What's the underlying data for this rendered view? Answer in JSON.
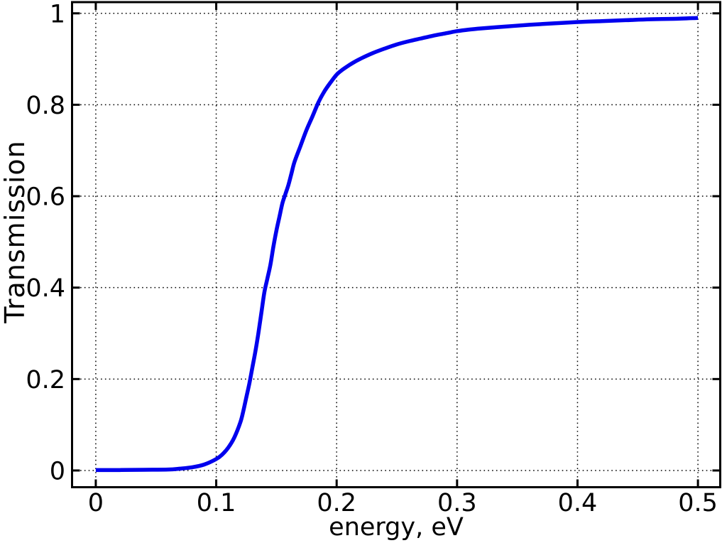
{
  "figure": {
    "background_color": "#ffffff",
    "axis_color": "#000000",
    "grid_style": "dotted"
  },
  "chart_data": {
    "type": "line",
    "title": "",
    "xlabel": "energy, eV",
    "ylabel": "Transmission",
    "xlim": [
      -0.0197,
      0.5185
    ],
    "ylim": [
      -0.0366,
      1.0245
    ],
    "x_ticks": [
      0,
      0.1,
      0.2,
      0.3,
      0.4,
      0.5
    ],
    "x_tick_labels": [
      "0",
      "0.1",
      "0.2",
      "0.3",
      "0.4",
      "0.5"
    ],
    "y_ticks": [
      0,
      0.2,
      0.4,
      0.6,
      0.8,
      1
    ],
    "y_tick_labels": [
      "0",
      "0.2",
      "0.4",
      "0.6",
      "0.8",
      "1"
    ],
    "grid": true,
    "legend": null,
    "series": [
      {
        "name": "transmission",
        "color": "#0000ee",
        "width": 5.5,
        "points": [
          [
            0.0,
            0.001
          ],
          [
            0.02,
            0.001
          ],
          [
            0.04,
            0.0015
          ],
          [
            0.06,
            0.002
          ],
          [
            0.07,
            0.004
          ],
          [
            0.08,
            0.007
          ],
          [
            0.09,
            0.013
          ],
          [
            0.1,
            0.025
          ],
          [
            0.105,
            0.035
          ],
          [
            0.11,
            0.05
          ],
          [
            0.115,
            0.072
          ],
          [
            0.12,
            0.105
          ],
          [
            0.1225,
            0.13
          ],
          [
            0.125,
            0.16
          ],
          [
            0.1275,
            0.19
          ],
          [
            0.13,
            0.225
          ],
          [
            0.1325,
            0.26
          ],
          [
            0.135,
            0.3
          ],
          [
            0.1375,
            0.345
          ],
          [
            0.14,
            0.39
          ],
          [
            0.1425,
            0.42
          ],
          [
            0.145,
            0.45
          ],
          [
            0.1475,
            0.49
          ],
          [
            0.15,
            0.525
          ],
          [
            0.1525,
            0.555
          ],
          [
            0.155,
            0.585
          ],
          [
            0.1575,
            0.605
          ],
          [
            0.16,
            0.625
          ],
          [
            0.1625,
            0.65
          ],
          [
            0.165,
            0.675
          ],
          [
            0.17,
            0.71
          ],
          [
            0.175,
            0.745
          ],
          [
            0.18,
            0.775
          ],
          [
            0.185,
            0.806
          ],
          [
            0.19,
            0.83
          ],
          [
            0.195,
            0.849
          ],
          [
            0.2,
            0.866
          ],
          [
            0.205,
            0.877
          ],
          [
            0.21,
            0.886
          ],
          [
            0.215,
            0.894
          ],
          [
            0.22,
            0.901
          ],
          [
            0.23,
            0.913
          ],
          [
            0.24,
            0.923
          ],
          [
            0.25,
            0.932
          ],
          [
            0.26,
            0.939
          ],
          [
            0.27,
            0.945
          ],
          [
            0.28,
            0.951
          ],
          [
            0.29,
            0.956
          ],
          [
            0.3,
            0.961
          ],
          [
            0.31,
            0.9645
          ],
          [
            0.32,
            0.967
          ],
          [
            0.34,
            0.971
          ],
          [
            0.36,
            0.975
          ],
          [
            0.38,
            0.978
          ],
          [
            0.4,
            0.981
          ],
          [
            0.42,
            0.983
          ],
          [
            0.44,
            0.985
          ],
          [
            0.46,
            0.987
          ],
          [
            0.48,
            0.988
          ],
          [
            0.5,
            0.99
          ]
        ]
      }
    ]
  }
}
